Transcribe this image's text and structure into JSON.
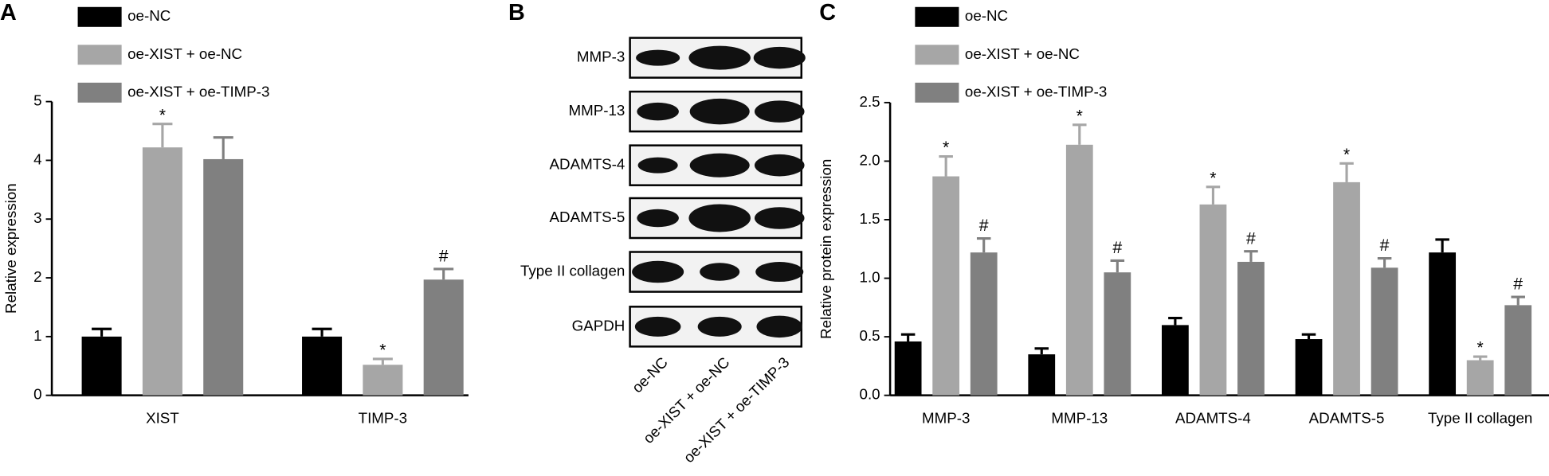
{
  "chart_data": [
    {
      "type": "bar",
      "panel_label": "A",
      "y_label": "Relative expression",
      "categories": [
        "XIST",
        "TIMP-3"
      ],
      "series": [
        {
          "name": "oe-NC",
          "color": "#000000",
          "values": [
            1.0,
            1.0
          ],
          "errors": [
            0.13,
            0.13
          ],
          "markers": [
            null,
            null
          ]
        },
        {
          "name": "oe-XIST + oe-NC",
          "color": "#a6a6a6",
          "values": [
            4.22,
            0.52
          ],
          "errors": [
            0.4,
            0.1
          ],
          "markers": [
            "*",
            "*"
          ]
        },
        {
          "name": "oe-XIST + oe-TIMP-3",
          "color": "#808080",
          "values": [
            4.02,
            1.97
          ],
          "errors": [
            0.37,
            0.18
          ],
          "markers": [
            null,
            "#"
          ]
        }
      ],
      "ylim": [
        0,
        5
      ],
      "yticks": [
        0,
        1,
        2,
        3,
        4,
        5
      ]
    },
    {
      "type": "bar",
      "panel_label": "C",
      "y_label": "Relative protein expression",
      "categories": [
        "MMP-3",
        "MMP-13",
        "ADAMTS-4",
        "ADAMTS-5",
        "Type II collagen"
      ],
      "series": [
        {
          "name": "oe-NC",
          "color": "#000000",
          "values": [
            0.46,
            0.35,
            0.6,
            0.48,
            1.22
          ],
          "errors": [
            0.06,
            0.05,
            0.06,
            0.04,
            0.11
          ],
          "markers": [
            null,
            null,
            null,
            null,
            null
          ]
        },
        {
          "name": "oe-XIST + oe-NC",
          "color": "#a6a6a6",
          "values": [
            1.87,
            2.14,
            1.63,
            1.82,
            0.3
          ],
          "errors": [
            0.17,
            0.17,
            0.15,
            0.16,
            0.03
          ],
          "markers": [
            "*",
            "*",
            "*",
            "*",
            "*"
          ]
        },
        {
          "name": "oe-XIST + oe-TIMP-3",
          "color": "#808080",
          "values": [
            1.22,
            1.05,
            1.14,
            1.09,
            0.77
          ],
          "errors": [
            0.12,
            0.1,
            0.09,
            0.08,
            0.07
          ],
          "markers": [
            "#",
            "#",
            "#",
            "#",
            "#"
          ]
        }
      ],
      "ylim": [
        0,
        2.5
      ],
      "yticks": [
        {
          "value": 0,
          "label": "0.0"
        },
        0.5,
        {
          "value": 1,
          "label": "1.0"
        },
        1.5,
        {
          "value": 2,
          "label": "2.0"
        },
        2.5
      ]
    }
  ],
  "blot": {
    "panel_label": "B",
    "rows": [
      "MMP-3",
      "MMP-13",
      "ADAMTS-4",
      "ADAMTS-5",
      "Type II collagen",
      "GAPDH"
    ],
    "lanes": [
      "oe-NC",
      "oe-XIST + oe-NC",
      "oe-XIST + oe-TIMP-3"
    ]
  }
}
